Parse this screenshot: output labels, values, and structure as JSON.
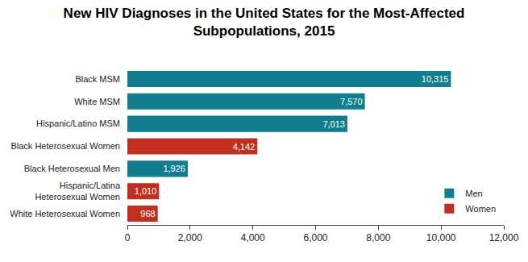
{
  "chart_data": {
    "type": "bar",
    "title": "New HIV Diagnoses in the United States for the Most-Affected Subpopulations, 2015",
    "orientation": "horizontal",
    "categories": [
      "Black MSM",
      "White MSM",
      "Hispanic/Latino MSM",
      "Black Heterosexual Women",
      "Black Heterosexual Men",
      "Hispanic/Latina Heterosexual Women",
      "White Heterosexual Women"
    ],
    "series": [
      {
        "name": "Men",
        "color": "#127d8c",
        "values": [
          10315,
          7570,
          7013,
          null,
          1926,
          null,
          null
        ],
        "value_labels": [
          "10,315",
          "7,570",
          "7,013",
          null,
          "1,926",
          null,
          null
        ]
      },
      {
        "name": "Women",
        "color": "#c0301f",
        "values": [
          null,
          null,
          null,
          4142,
          null,
          1010,
          968
        ],
        "value_labels": [
          null,
          null,
          null,
          "4,142",
          null,
          "1,010",
          "968"
        ]
      }
    ],
    "xlim": [
      0,
      12000
    ],
    "xticks": [
      0,
      {
        "value": 2000,
        "label": "2,000"
      },
      {
        "value": 4000,
        "label": "4,000"
      },
      {
        "value": 6000,
        "label": "6,000"
      },
      {
        "value": 8000,
        "label": "8,000"
      },
      {
        "value": 10000,
        "label": "10,000"
      },
      {
        "value": 12000,
        "label": "12,000"
      }
    ],
    "grid": false,
    "legend": "lower right",
    "data_labels": true
  }
}
